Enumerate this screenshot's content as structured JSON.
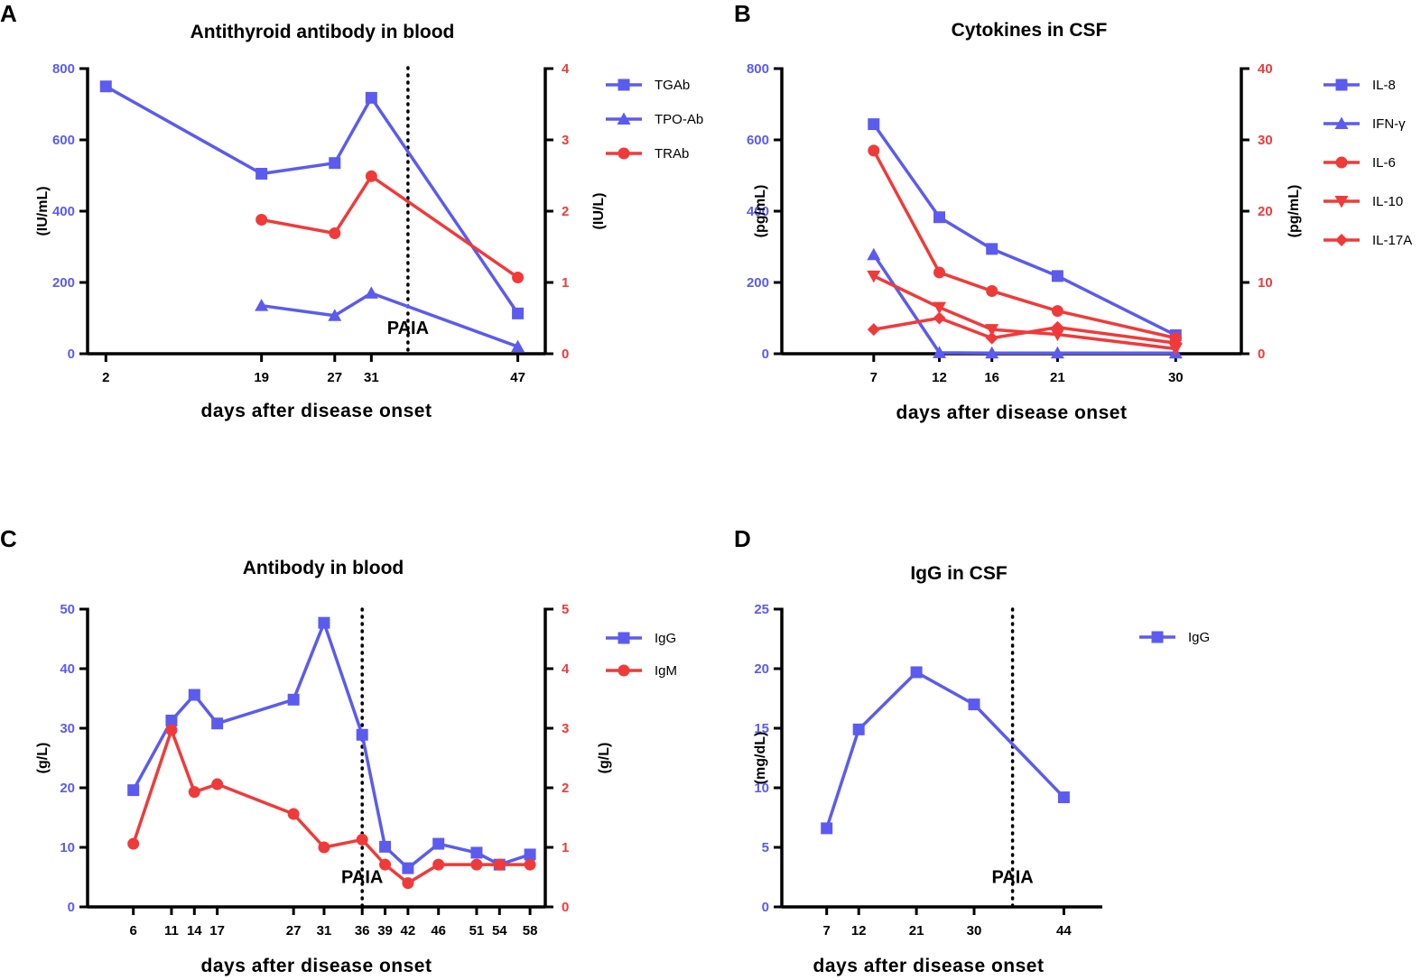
{
  "colors": {
    "blue": "#5b5bf0",
    "red": "#f03a3a",
    "black": "#000000"
  },
  "chart_data": [
    {
      "type": "line",
      "panel": "A",
      "title": "Antithyroid antibody in blood",
      "xlabel": "days after disease onset",
      "ylabel_left": "(IU/mL)",
      "ylabel_right": "(IU/L)",
      "xlim": [
        0,
        50
      ],
      "xticks": [
        2,
        19,
        27,
        31,
        47
      ],
      "ylim_left": [
        0,
        800
      ],
      "yticks_left": [
        0,
        200,
        400,
        600,
        800
      ],
      "ylim_right": [
        0,
        4
      ],
      "yticks_right": [
        0,
        1,
        2,
        3,
        4
      ],
      "vline": 35,
      "annotation": {
        "text": "PAIA",
        "x": 35,
        "y": 35
      },
      "legend_placement": "right",
      "series": [
        {
          "name": "TGAb",
          "axis": "left",
          "color": "blue",
          "marker": "square",
          "x": [
            2,
            19,
            27,
            31,
            47
          ],
          "values": [
            750,
            505,
            535,
            718,
            113
          ]
        },
        {
          "name": "TPO-Ab",
          "axis": "left",
          "color": "blue",
          "marker": "triangle",
          "x": [
            19,
            27,
            31,
            47
          ],
          "values": [
            135,
            107,
            170,
            20
          ]
        },
        {
          "name": "TRAb",
          "axis": "right",
          "color": "red",
          "marker": "circle",
          "x": [
            19,
            27,
            31,
            47
          ],
          "values": [
            1.88,
            1.69,
            2.49,
            1.07
          ]
        }
      ]
    },
    {
      "type": "line",
      "panel": "B",
      "title": "Cytokines in CSF",
      "xlabel": "days after disease onset",
      "ylabel_left": "(pg/mL)",
      "ylabel_right": "(pg/mL)",
      "xlim": [
        0,
        35
      ],
      "xticks": [
        7,
        12,
        16,
        21,
        30
      ],
      "ylim_left": [
        0,
        800
      ],
      "yticks_left": [
        0,
        200,
        400,
        600,
        800
      ],
      "ylim_right": [
        0,
        40
      ],
      "yticks_right": [
        0,
        10,
        20,
        30,
        40
      ],
      "legend_placement": "right",
      "series": [
        {
          "name": "IL-8",
          "axis": "left",
          "color": "blue",
          "marker": "square",
          "x": [
            7,
            12,
            16,
            21,
            30
          ],
          "values": [
            644,
            383,
            294,
            218,
            52
          ]
        },
        {
          "name": "IFN-γ",
          "axis": "left",
          "color": "blue",
          "marker": "triangle",
          "x": [
            7,
            12,
            16,
            21,
            30
          ],
          "values": [
            278,
            3,
            2,
            2,
            2
          ]
        },
        {
          "name": "IL-6",
          "axis": "right",
          "color": "red",
          "marker": "circle",
          "x": [
            7,
            12,
            16,
            21,
            30
          ],
          "values": [
            28.5,
            11.4,
            8.8,
            6.0,
            2.2
          ]
        },
        {
          "name": "IL-10",
          "axis": "right",
          "color": "red",
          "marker": "triangle-down",
          "x": [
            7,
            12,
            16,
            21,
            30
          ],
          "values": [
            10.9,
            6.5,
            3.4,
            2.7,
            0.7
          ]
        },
        {
          "name": "IL-17A",
          "axis": "right",
          "color": "red",
          "marker": "diamond",
          "x": [
            7,
            12,
            16,
            21,
            30
          ],
          "values": [
            3.4,
            5.0,
            2.2,
            3.7,
            1.5
          ]
        }
      ]
    },
    {
      "type": "line",
      "panel": "C",
      "title": "Antibody in blood",
      "xlabel": "days after disease onset",
      "ylabel_left": "(g/L)",
      "ylabel_right": "(g/L)",
      "xlim": [
        0,
        60
      ],
      "xticks": [
        6,
        11,
        14,
        17,
        27,
        31,
        36,
        39,
        42,
        46,
        51,
        54,
        58
      ],
      "ylim_left": [
        0,
        50
      ],
      "yticks_left": [
        0,
        10,
        20,
        30,
        40,
        50
      ],
      "ylim_right": [
        0,
        5
      ],
      "yticks_right": [
        0,
        1,
        2,
        3,
        4,
        5
      ],
      "vline": 36,
      "annotation": {
        "text": "PAIA",
        "x": 36,
        "y": 2.8
      },
      "legend_placement": "right",
      "series": [
        {
          "name": "IgG",
          "axis": "left",
          "color": "blue",
          "marker": "square",
          "x": [
            6,
            11,
            14,
            17,
            27,
            31,
            36,
            39,
            42,
            46,
            51,
            54,
            58
          ],
          "values": [
            19.6,
            31.3,
            35.6,
            30.8,
            34.8,
            47.7,
            28.9,
            10.1,
            6.5,
            10.6,
            9.1,
            7.1,
            8.8
          ]
        },
        {
          "name": "IgM",
          "axis": "right",
          "color": "red",
          "marker": "circle",
          "x": [
            6,
            11,
            14,
            17,
            27,
            31,
            36,
            39,
            42,
            46,
            51,
            54,
            58
          ],
          "values": [
            1.06,
            2.97,
            1.93,
            2.06,
            1.56,
            1.0,
            1.13,
            0.71,
            0.4,
            0.71,
            0.71,
            0.71,
            0.71
          ]
        }
      ]
    },
    {
      "type": "line",
      "panel": "D",
      "title": "IgG in CSF",
      "xlabel": "days after disease onset",
      "ylabel_left": "(mg/dL)",
      "xlim": [
        0,
        50
      ],
      "xticks": [
        7,
        12,
        21,
        30,
        44
      ],
      "ylim_left": [
        0,
        25
      ],
      "yticks_left": [
        0,
        5,
        10,
        15,
        20,
        25
      ],
      "vline": 36,
      "annotation": {
        "text": "PAIA",
        "x": 36,
        "y": 1.4
      },
      "legend_placement": "right",
      "series": [
        {
          "name": "IgG",
          "axis": "left",
          "color": "blue",
          "marker": "square",
          "x": [
            7,
            12,
            21,
            30,
            44
          ],
          "values": [
            6.6,
            14.9,
            19.7,
            17.0,
            9.2
          ]
        }
      ]
    }
  ]
}
